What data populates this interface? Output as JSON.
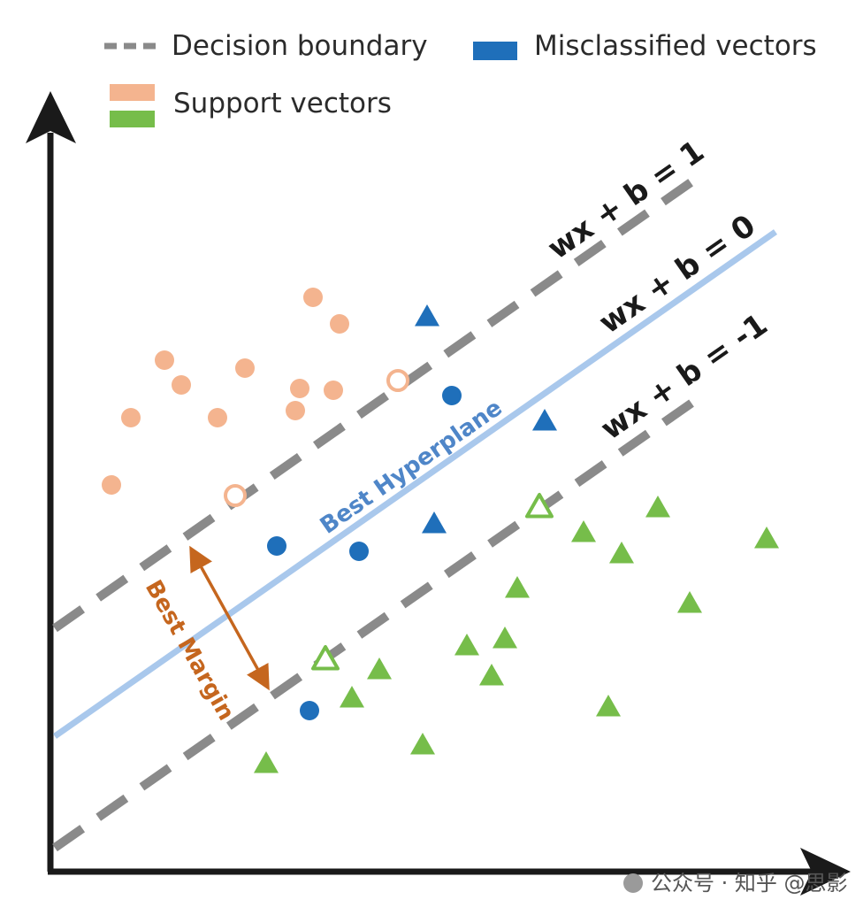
{
  "legend": {
    "decision_boundary": "Decision boundary",
    "misclassified_vectors": "Misclassified vectors",
    "support_vectors": "Support vectors"
  },
  "equations": {
    "positive": "wx + b = 1",
    "zero": "wx + b = 0",
    "negative": "wx + b = -1"
  },
  "hyperplane_label": "Best Hyperplane",
  "margin_label": "Best Margin",
  "watermark": "公众号 · 知乎 @思影",
  "colors": {
    "orange": "#f4b48f",
    "green": "#76bd4a",
    "blue": "#1f6fba",
    "hyperplane": "#a9c8ec",
    "hyperplane_text": "#4f86c8",
    "boundary": "#8a8a8a",
    "margin_arrow": "#c5661e",
    "axis": "#1a1a1a"
  },
  "points": {
    "orange_filled": [
      [
        354,
        336
      ],
      [
        384,
        366
      ],
      [
        186,
        407
      ],
      [
        277,
        416
      ],
      [
        205,
        435
      ],
      [
        339,
        439
      ],
      [
        377,
        441
      ],
      [
        148,
        472
      ],
      [
        246,
        472
      ],
      [
        334,
        464
      ],
      [
        126,
        548
      ]
    ],
    "orange_hollow": [
      [
        450,
        430
      ],
      [
        266,
        560
      ]
    ],
    "blue_triangles": [
      [
        483,
        358
      ],
      [
        616,
        476
      ],
      [
        491,
        592
      ]
    ],
    "blue_circles": [
      [
        511,
        447
      ],
      [
        313,
        617
      ],
      [
        406,
        623
      ],
      [
        350,
        803
      ]
    ],
    "green_filled": [
      [
        744,
        574
      ],
      [
        660,
        602
      ],
      [
        867,
        609
      ],
      [
        703,
        626
      ],
      [
        585,
        665
      ],
      [
        780,
        682
      ],
      [
        571,
        722
      ],
      [
        528,
        730
      ],
      [
        429,
        757
      ],
      [
        556,
        764
      ],
      [
        398,
        789
      ],
      [
        688,
        799
      ],
      [
        478,
        842
      ],
      [
        301,
        863
      ]
    ],
    "green_hollow": [
      [
        610,
        573
      ],
      [
        368,
        745
      ]
    ]
  }
}
